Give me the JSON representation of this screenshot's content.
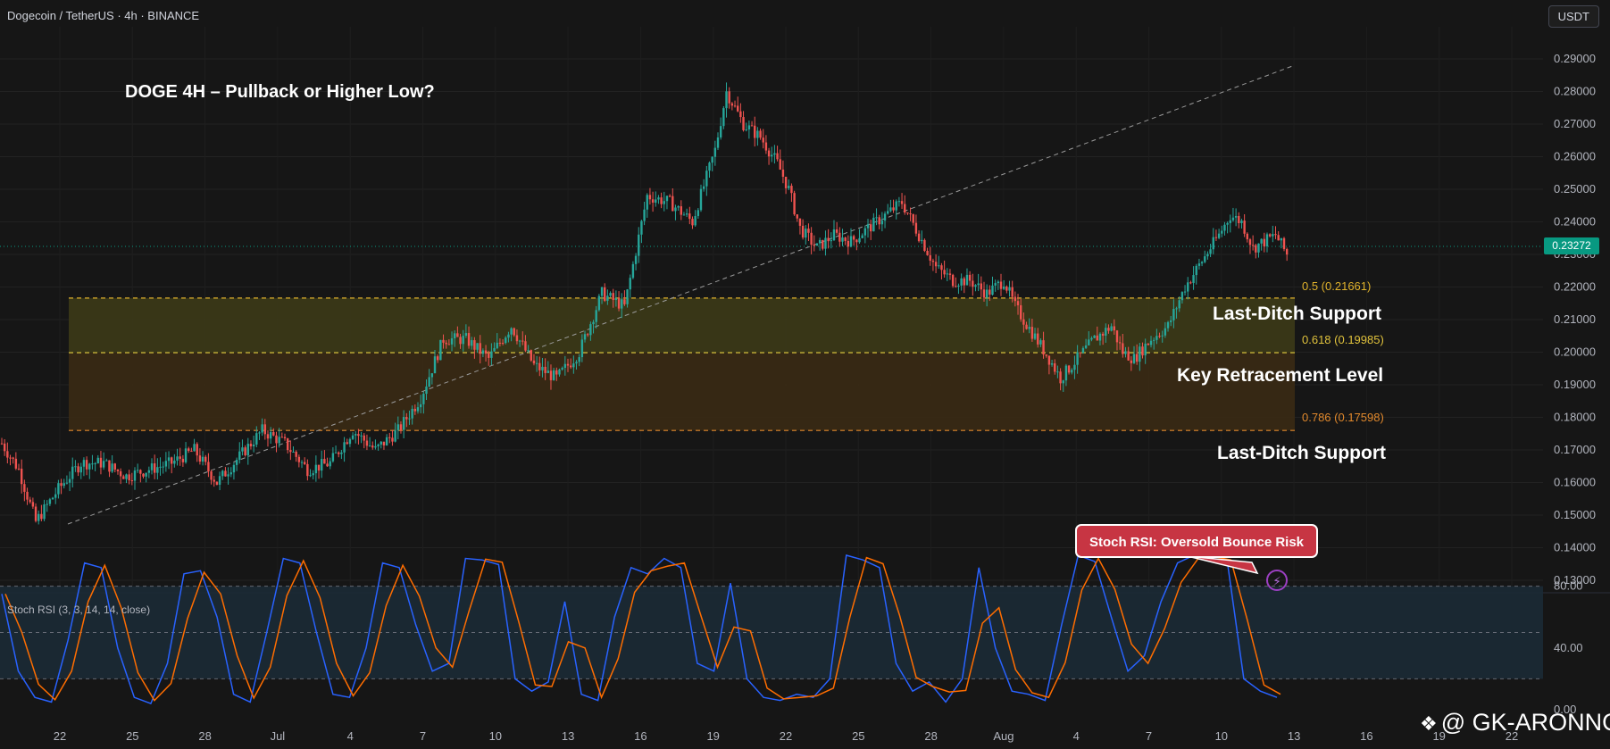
{
  "header": {
    "symbol": "Dogecoin / TetherUS · 4h · BINANCE",
    "currency_button": "USDT"
  },
  "current_price": "0.23272",
  "annotations": {
    "title": "DOGE 4H – Pullback or Higher Low?",
    "fib_05": "0.5 (0.21661)",
    "fib_0618": "0.618 (0.19985)",
    "fib_0786": "0.786 (0.17598)",
    "zone_upper": "Last-Ditch Support",
    "zone_mid": "Key Retracement Level",
    "zone_lower": "Last-Ditch Support",
    "callout": "Stoch RSI: Oversold Bounce Risk"
  },
  "indicator": {
    "name": "Stoch RSI (3, 3, 14, 14, close)"
  },
  "watermark": "@ GK-ARONNO",
  "colors": {
    "background": "#161616",
    "bull": "#26a69a",
    "bear": "#ef5350",
    "fib_zone_upper": "#3c3a17",
    "fib_zone_lower": "#3a2a14",
    "fib_line": "#e0b22c",
    "stoch_k": "#2962ff",
    "stoch_d": "#ff6d00",
    "price_badge": "#089981",
    "callout": "#c73543"
  },
  "chart_data": [
    {
      "type": "candlestick",
      "title": "DOGE 4H – Pullback or Higher Low?",
      "x_ticks": [
        "22",
        "25",
        "28",
        "Jul",
        "4",
        "7",
        "10",
        "13",
        "16",
        "19",
        "22",
        "25",
        "28",
        "Aug",
        "4",
        "7",
        "10",
        "13",
        "16",
        "19",
        "22"
      ],
      "y_ticks": [
        "0.29000",
        "0.28000",
        "0.27000",
        "0.26000",
        "0.25000",
        "0.24000",
        "0.23000",
        "0.22000",
        "0.21000",
        "0.20000",
        "0.19000",
        "0.18000",
        "0.17000",
        "0.16000",
        "0.15000",
        "0.14000",
        "0.13000"
      ],
      "ylim": [
        0.125,
        0.3
      ],
      "series_path": [
        [
          0,
          0.172
        ],
        [
          6,
          0.164
        ],
        [
          12,
          0.148
        ],
        [
          20,
          0.158
        ],
        [
          28,
          0.166
        ],
        [
          36,
          0.166
        ],
        [
          44,
          0.162
        ],
        [
          52,
          0.164
        ],
        [
          60,
          0.166
        ],
        [
          68,
          0.17
        ],
        [
          76,
          0.16
        ],
        [
          84,
          0.168
        ],
        [
          92,
          0.176
        ],
        [
          100,
          0.172
        ],
        [
          108,
          0.164
        ],
        [
          116,
          0.166
        ],
        [
          124,
          0.176
        ],
        [
          132,
          0.17
        ],
        [
          140,
          0.176
        ],
        [
          148,
          0.186
        ],
        [
          156,
          0.204
        ],
        [
          164,
          0.204
        ],
        [
          172,
          0.198
        ],
        [
          180,
          0.208
        ],
        [
          188,
          0.196
        ],
        [
          196,
          0.192
        ],
        [
          204,
          0.2
        ],
        [
          212,
          0.218
        ],
        [
          220,
          0.214
        ],
        [
          228,
          0.248
        ],
        [
          236,
          0.246
        ],
        [
          244,
          0.24
        ],
        [
          252,
          0.262
        ],
        [
          256,
          0.28
        ],
        [
          262,
          0.27
        ],
        [
          268,
          0.266
        ],
        [
          274,
          0.258
        ],
        [
          278,
          0.25
        ],
        [
          282,
          0.238
        ],
        [
          288,
          0.232
        ],
        [
          294,
          0.236
        ],
        [
          300,
          0.234
        ],
        [
          306,
          0.238
        ],
        [
          312,
          0.242
        ],
        [
          318,
          0.246
        ],
        [
          324,
          0.236
        ],
        [
          330,
          0.226
        ],
        [
          336,
          0.222
        ],
        [
          342,
          0.222
        ],
        [
          348,
          0.218
        ],
        [
          354,
          0.222
        ],
        [
          358,
          0.214
        ],
        [
          364,
          0.206
        ],
        [
          370,
          0.198
        ],
        [
          374,
          0.192
        ],
        [
          380,
          0.198
        ],
        [
          386,
          0.204
        ],
        [
          392,
          0.208
        ],
        [
          396,
          0.2
        ],
        [
          400,
          0.198
        ],
        [
          406,
          0.204
        ],
        [
          412,
          0.208
        ],
        [
          418,
          0.22
        ],
        [
          424,
          0.228
        ],
        [
          430,
          0.236
        ],
        [
          434,
          0.242
        ],
        [
          438,
          0.24
        ],
        [
          442,
          0.232
        ],
        [
          446,
          0.234
        ],
        [
          450,
          0.236
        ],
        [
          454,
          0.23
        ]
      ],
      "fib_levels": [
        {
          "ratio": 0.5,
          "price": 0.21661
        },
        {
          "ratio": 0.618,
          "price": 0.19985
        },
        {
          "ratio": 0.786,
          "price": 0.17598
        }
      ]
    },
    {
      "type": "line",
      "title": "Stoch RSI (3, 3, 14, 14, close)",
      "y_ticks": [
        "80.00",
        "40.00",
        "0.00"
      ],
      "ylim": [
        0,
        110
      ],
      "series": [
        {
          "values": [
            75,
            25,
            8,
            5,
            45,
            95,
            92,
            40,
            8,
            4,
            30,
            88,
            90,
            60,
            10,
            5,
            50,
            98,
            95,
            50,
            10,
            8,
            40,
            95,
            92,
            55,
            25,
            30,
            98,
            97,
            94,
            20,
            12,
            18,
            70,
            10,
            6,
            60,
            92,
            88,
            98,
            92,
            30,
            25,
            82,
            20,
            8,
            6,
            10,
            8,
            20,
            100,
            97,
            92,
            30,
            12,
            18,
            5,
            20,
            92,
            40,
            12,
            10,
            6,
            55,
            100,
            96,
            60,
            25,
            35,
            70,
            95,
            100,
            98,
            96,
            20,
            12,
            8
          ]
        }
      ],
      "reference_levels": [
        80,
        20
      ]
    }
  ]
}
